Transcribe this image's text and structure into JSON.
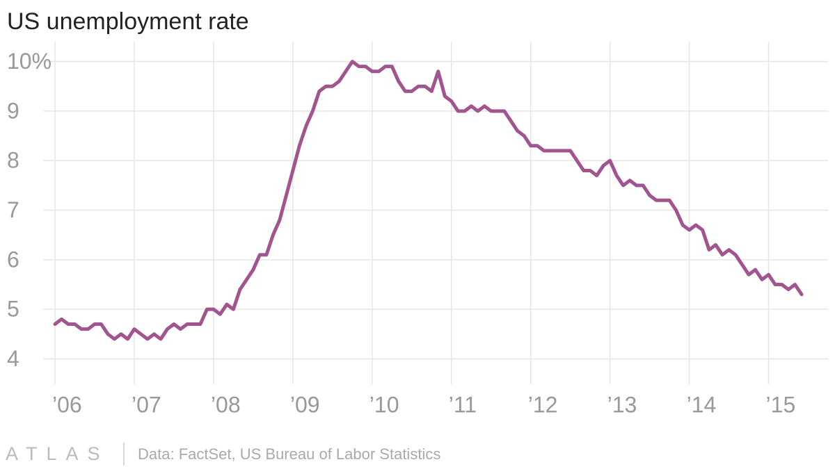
{
  "chart_data": {
    "type": "line",
    "title": "US unemployment rate",
    "x": [
      2006,
      2006.083,
      2006.167,
      2006.25,
      2006.333,
      2006.417,
      2006.5,
      2006.583,
      2006.667,
      2006.75,
      2006.833,
      2006.917,
      2007,
      2007.083,
      2007.167,
      2007.25,
      2007.333,
      2007.417,
      2007.5,
      2007.583,
      2007.667,
      2007.75,
      2007.833,
      2007.917,
      2008,
      2008.083,
      2008.167,
      2008.25,
      2008.333,
      2008.417,
      2008.5,
      2008.583,
      2008.667,
      2008.75,
      2008.833,
      2008.917,
      2009,
      2009.083,
      2009.167,
      2009.25,
      2009.333,
      2009.417,
      2009.5,
      2009.583,
      2009.667,
      2009.75,
      2009.833,
      2009.917,
      2010,
      2010.083,
      2010.167,
      2010.25,
      2010.333,
      2010.417,
      2010.5,
      2010.583,
      2010.667,
      2010.75,
      2010.833,
      2010.917,
      2011,
      2011.083,
      2011.167,
      2011.25,
      2011.333,
      2011.417,
      2011.5,
      2011.583,
      2011.667,
      2011.75,
      2011.833,
      2011.917,
      2012,
      2012.083,
      2012.167,
      2012.25,
      2012.333,
      2012.417,
      2012.5,
      2012.583,
      2012.667,
      2012.75,
      2012.833,
      2012.917,
      2013,
      2013.083,
      2013.167,
      2013.25,
      2013.333,
      2013.417,
      2013.5,
      2013.583,
      2013.667,
      2013.75,
      2013.833,
      2013.917,
      2014,
      2014.083,
      2014.167,
      2014.25,
      2014.333,
      2014.417,
      2014.5,
      2014.583,
      2014.667,
      2014.75,
      2014.833,
      2014.917,
      2015,
      2015.083,
      2015.167,
      2015.25,
      2015.333,
      2015.417
    ],
    "values": [
      4.7,
      4.8,
      4.7,
      4.7,
      4.6,
      4.6,
      4.7,
      4.7,
      4.5,
      4.4,
      4.5,
      4.4,
      4.6,
      4.5,
      4.4,
      4.5,
      4.4,
      4.6,
      4.7,
      4.6,
      4.7,
      4.7,
      4.7,
      5.0,
      5.0,
      4.9,
      5.1,
      5.0,
      5.4,
      5.6,
      5.8,
      6.1,
      6.1,
      6.5,
      6.8,
      7.3,
      7.8,
      8.3,
      8.7,
      9.0,
      9.4,
      9.5,
      9.5,
      9.6,
      9.8,
      10.0,
      9.9,
      9.9,
      9.8,
      9.8,
      9.9,
      9.9,
      9.6,
      9.4,
      9.4,
      9.5,
      9.5,
      9.4,
      9.8,
      9.3,
      9.2,
      9.0,
      9.0,
      9.1,
      9.0,
      9.1,
      9.0,
      9.0,
      9.0,
      8.8,
      8.6,
      8.5,
      8.3,
      8.3,
      8.2,
      8.2,
      8.2,
      8.2,
      8.2,
      8.0,
      7.8,
      7.8,
      7.7,
      7.9,
      8.0,
      7.7,
      7.5,
      7.6,
      7.5,
      7.5,
      7.3,
      7.2,
      7.2,
      7.2,
      7.0,
      6.7,
      6.6,
      6.7,
      6.6,
      6.2,
      6.3,
      6.1,
      6.2,
      6.1,
      5.9,
      5.7,
      5.8,
      5.6,
      5.7,
      5.5,
      5.5,
      5.4,
      5.5,
      5.3
    ],
    "color": "#a2548f",
    "xlim": [
      2005.833,
      2015.75
    ],
    "xticks": [
      {
        "value": 2006,
        "label": "’06"
      },
      {
        "value": 2007,
        "label": "’07"
      },
      {
        "value": 2008,
        "label": "’08"
      },
      {
        "value": 2009,
        "label": "’09"
      },
      {
        "value": 2010,
        "label": "’10"
      },
      {
        "value": 2011,
        "label": "’11"
      },
      {
        "value": 2012,
        "label": "’12"
      },
      {
        "value": 2013,
        "label": "’13"
      },
      {
        "value": 2014,
        "label": "’14"
      },
      {
        "value": 2015,
        "label": "’15"
      }
    ],
    "ylim": [
      3.6,
      10.4
    ],
    "yticks": [
      4,
      5,
      6,
      7,
      8,
      9,
      {
        "value": 10,
        "label": "10%"
      }
    ],
    "grid": true,
    "brand": "ATLAS",
    "source": "Data: FactSet, US Bureau of Labor Statistics"
  }
}
